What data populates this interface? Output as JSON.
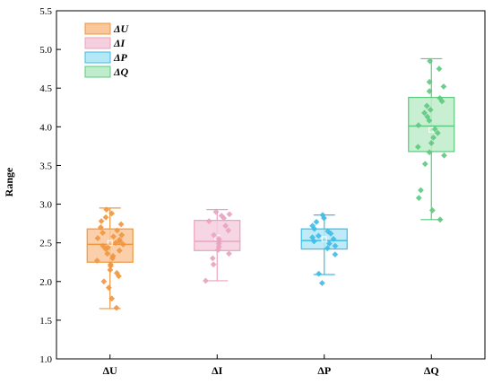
{
  "chart_data": {
    "type": "box",
    "title": "",
    "xlabel": "",
    "ylabel": "Range",
    "ylim": [
      1.0,
      5.5
    ],
    "yticks": [
      "1.0",
      "1.5",
      "2.0",
      "2.5",
      "3.0",
      "3.5",
      "4.0",
      "4.5",
      "5.0",
      "5.5"
    ],
    "grid": false,
    "legend_position": "top-left",
    "categories": [
      "ΔU",
      "ΔI",
      "ΔP",
      "ΔQ"
    ],
    "series": [
      {
        "name": "ΔU",
        "legend_label": "ΔU",
        "color": "#f0963f",
        "fill": "#f9c79a",
        "stats": {
          "whisker_low": 1.65,
          "q1": 2.25,
          "median": 2.48,
          "mean": 2.5,
          "q3": 2.68,
          "whisker_high": 2.95
        },
        "points": [
          1.66,
          1.78,
          1.92,
          2.0,
          2.07,
          2.11,
          2.15,
          2.2,
          2.22,
          2.27,
          2.3,
          2.33,
          2.36,
          2.4,
          2.42,
          2.44,
          2.46,
          2.48,
          2.5,
          2.52,
          2.54,
          2.56,
          2.58,
          2.6,
          2.63,
          2.66,
          2.7,
          2.74,
          2.78,
          2.83,
          2.88,
          2.93
        ]
      },
      {
        "name": "ΔI",
        "legend_label": "ΔI",
        "color": "#e8a3bf",
        "fill": "#f6cfde",
        "stats": {
          "whisker_low": 2.01,
          "q1": 2.4,
          "median": 2.52,
          "mean": 2.57,
          "q3": 2.79,
          "whisker_high": 2.93
        },
        "points": [
          2.01,
          2.22,
          2.3,
          2.36,
          2.41,
          2.45,
          2.49,
          2.52,
          2.55,
          2.6,
          2.66,
          2.72,
          2.78,
          2.82,
          2.85,
          2.87,
          2.9
        ]
      },
      {
        "name": "ΔP",
        "legend_label": "ΔP",
        "color": "#3cbde8",
        "fill": "#b4e8f7",
        "stats": {
          "whisker_low": 2.09,
          "q1": 2.42,
          "median": 2.53,
          "mean": 2.55,
          "q3": 2.68,
          "whisker_high": 2.86
        },
        "points": [
          1.98,
          2.1,
          2.35,
          2.43,
          2.46,
          2.49,
          2.52,
          2.55,
          2.57,
          2.59,
          2.62,
          2.65,
          2.68,
          2.72,
          2.77,
          2.82,
          2.86
        ]
      },
      {
        "name": "ΔQ",
        "legend_label": "ΔQ",
        "color": "#5cc97e",
        "fill": "#bfeccb",
        "stats": {
          "whisker_low": 2.8,
          "q1": 3.68,
          "median": 4.01,
          "mean": 3.96,
          "q3": 4.38,
          "whisker_high": 4.88
        },
        "points": [
          2.8,
          2.92,
          3.08,
          3.18,
          3.52,
          3.63,
          3.67,
          3.74,
          3.79,
          3.86,
          3.92,
          3.97,
          4.02,
          4.08,
          4.13,
          4.18,
          4.22,
          4.27,
          4.33,
          4.37,
          4.46,
          4.52,
          4.58,
          4.75,
          4.85
        ]
      }
    ]
  }
}
